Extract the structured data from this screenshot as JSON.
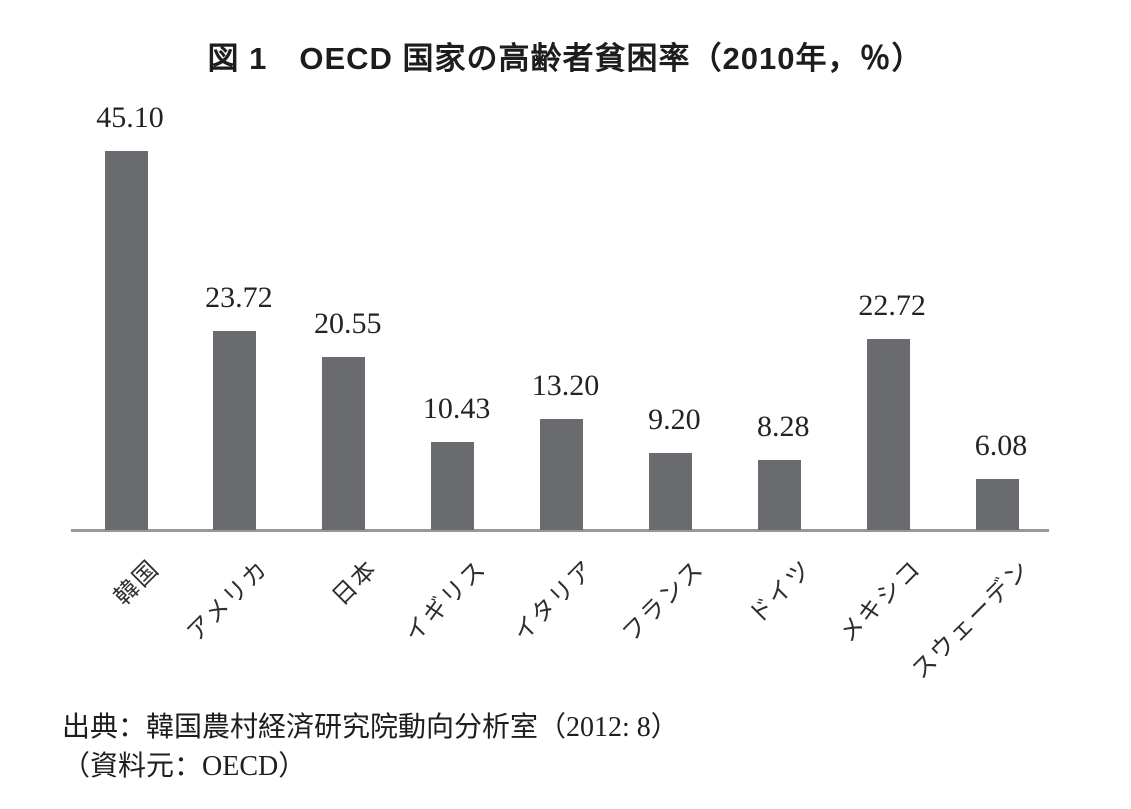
{
  "figure": {
    "title": "図 1　OECD 国家の高齢者貧困率（2010年，％）",
    "source_line1": "出典：韓国農村経済研究院動向分析室（2012: 8）",
    "source_line2": "（資料元：OECD）"
  },
  "colors": {
    "bar": "#6a6b6e",
    "axis": "#98989a",
    "title_text": "#1d1d1f",
    "value_text": "#232327",
    "category_text": "#2e2e30"
  },
  "chart_data": {
    "type": "bar",
    "title": "図 1　OECD 国家の高齢者貧困率（2010年，％）",
    "categories": [
      "韓国",
      "アメリカ",
      "日本",
      "イギリス",
      "イタリア",
      "フランス",
      "ドイツ",
      "メキシコ",
      "スウェーデン"
    ],
    "values": [
      45.1,
      23.72,
      20.55,
      10.43,
      13.2,
      9.2,
      8.28,
      22.72,
      6.08
    ],
    "value_labels": [
      "45.10",
      "23.72",
      "20.55",
      "10.43",
      "13.20",
      "9.20",
      "8.28",
      "22.72",
      "6.08"
    ],
    "xlabel": "",
    "ylabel": "",
    "ylim": [
      0,
      47.5
    ],
    "grid": false,
    "legend": false,
    "bar_color": "#6a6b6e",
    "category_label_rotation_deg": 45,
    "source": "出典：韓国農村経済研究院動向分析室（2012: 8）（資料元：OECD）"
  }
}
